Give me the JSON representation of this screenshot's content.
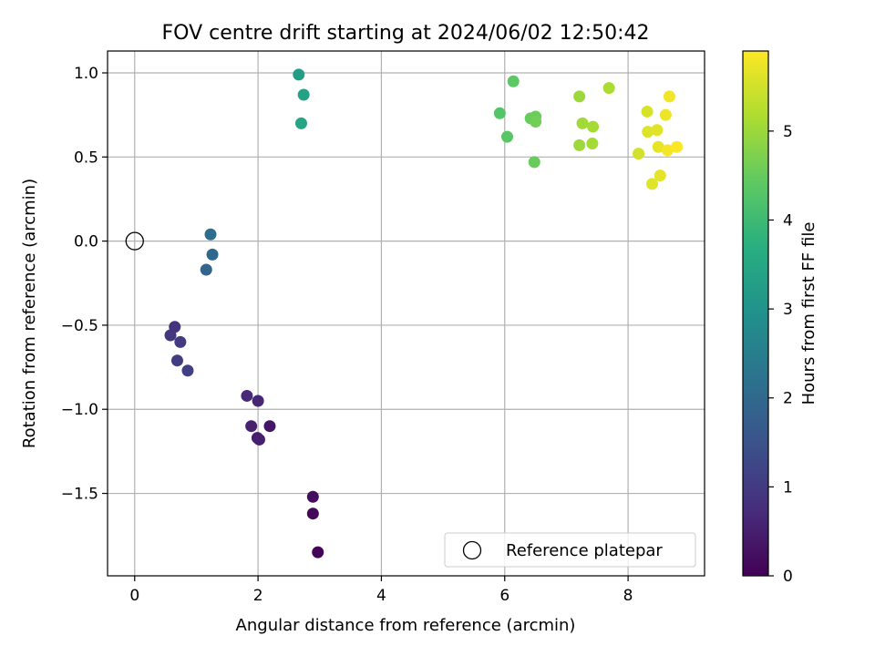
{
  "chart_data": {
    "type": "scatter",
    "title": "FOV centre drift starting at 2024/06/02 12:50:42",
    "xlabel": "Angular distance from reference (arcmin)",
    "ylabel": "Rotation from reference (arcmin)",
    "colorbar_label": "Hours from first FF file",
    "xlim": [
      -0.44,
      9.24
    ],
    "ylim": [
      -1.99,
      1.13
    ],
    "colorbar_range": [
      0,
      5.9
    ],
    "colormap": "viridis",
    "grid": true,
    "legend_position": "lower-right",
    "x_ticks": [
      0,
      2,
      4,
      6,
      8
    ],
    "y_ticks": [
      -1.5,
      -1.0,
      -0.5,
      0.0,
      0.5,
      1.0
    ],
    "x_tick_labels": [
      "0",
      "2",
      "4",
      "6",
      "8"
    ],
    "y_tick_labels": [
      "−1.5",
      "−1.0",
      "−0.5",
      "0.0",
      "0.5",
      "1.0"
    ],
    "colorbar_ticks": [
      0,
      1,
      2,
      3,
      4,
      5
    ],
    "colorbar_tick_labels": [
      "0",
      "1",
      "2",
      "3",
      "4",
      "5"
    ],
    "reference": {
      "label": "Reference platepar",
      "x": 0.0,
      "y": 0.0
    },
    "points": [
      {
        "x": 2.97,
        "y": -1.85,
        "hours": 0.05
      },
      {
        "x": 2.89,
        "y": -1.62,
        "hours": 0.12
      },
      {
        "x": 2.89,
        "y": -1.52,
        "hours": 0.2
      },
      {
        "x": 2.19,
        "y": -1.1,
        "hours": 0.35
      },
      {
        "x": 1.99,
        "y": -1.17,
        "hours": 0.45
      },
      {
        "x": 2.02,
        "y": -1.18,
        "hours": 0.5
      },
      {
        "x": 1.89,
        "y": -1.1,
        "hours": 0.55
      },
      {
        "x": 2.0,
        "y": -0.95,
        "hours": 0.62
      },
      {
        "x": 1.82,
        "y": -0.92,
        "hours": 0.7
      },
      {
        "x": 0.65,
        "y": -0.51,
        "hours": 0.85
      },
      {
        "x": 0.58,
        "y": -0.56,
        "hours": 0.92
      },
      {
        "x": 0.74,
        "y": -0.6,
        "hours": 1.0
      },
      {
        "x": 0.69,
        "y": -0.71,
        "hours": 1.05
      },
      {
        "x": 0.86,
        "y": -0.77,
        "hours": 1.12
      },
      {
        "x": 1.16,
        "y": -0.17,
        "hours": 1.9
      },
      {
        "x": 1.26,
        "y": -0.08,
        "hours": 2.0
      },
      {
        "x": 1.23,
        "y": 0.04,
        "hours": 2.1
      },
      {
        "x": 2.66,
        "y": 0.99,
        "hours": 3.25
      },
      {
        "x": 2.74,
        "y": 0.87,
        "hours": 3.35
      },
      {
        "x": 2.7,
        "y": 0.7,
        "hours": 3.45
      },
      {
        "x": 5.92,
        "y": 0.76,
        "hours": 4.3
      },
      {
        "x": 6.04,
        "y": 0.62,
        "hours": 4.35
      },
      {
        "x": 6.14,
        "y": 0.95,
        "hours": 4.4
      },
      {
        "x": 6.42,
        "y": 0.73,
        "hours": 4.5
      },
      {
        "x": 6.5,
        "y": 0.74,
        "hours": 4.55
      },
      {
        "x": 6.5,
        "y": 0.71,
        "hours": 4.6
      },
      {
        "x": 6.48,
        "y": 0.47,
        "hours": 4.52
      },
      {
        "x": 7.21,
        "y": 0.86,
        "hours": 5.0
      },
      {
        "x": 7.26,
        "y": 0.7,
        "hours": 5.05
      },
      {
        "x": 7.21,
        "y": 0.57,
        "hours": 5.02
      },
      {
        "x": 7.43,
        "y": 0.68,
        "hours": 5.1
      },
      {
        "x": 7.42,
        "y": 0.58,
        "hours": 5.08
      },
      {
        "x": 7.69,
        "y": 0.91,
        "hours": 5.15
      },
      {
        "x": 8.17,
        "y": 0.52,
        "hours": 5.5
      },
      {
        "x": 8.31,
        "y": 0.77,
        "hours": 5.55
      },
      {
        "x": 8.32,
        "y": 0.65,
        "hours": 5.6
      },
      {
        "x": 8.47,
        "y": 0.66,
        "hours": 5.65
      },
      {
        "x": 8.49,
        "y": 0.56,
        "hours": 5.7
      },
      {
        "x": 8.52,
        "y": 0.39,
        "hours": 5.68
      },
      {
        "x": 8.39,
        "y": 0.34,
        "hours": 5.62
      },
      {
        "x": 8.61,
        "y": 0.75,
        "hours": 5.75
      },
      {
        "x": 8.67,
        "y": 0.86,
        "hours": 5.78
      },
      {
        "x": 8.64,
        "y": 0.54,
        "hours": 5.82
      },
      {
        "x": 8.79,
        "y": 0.56,
        "hours": 5.88
      }
    ]
  }
}
